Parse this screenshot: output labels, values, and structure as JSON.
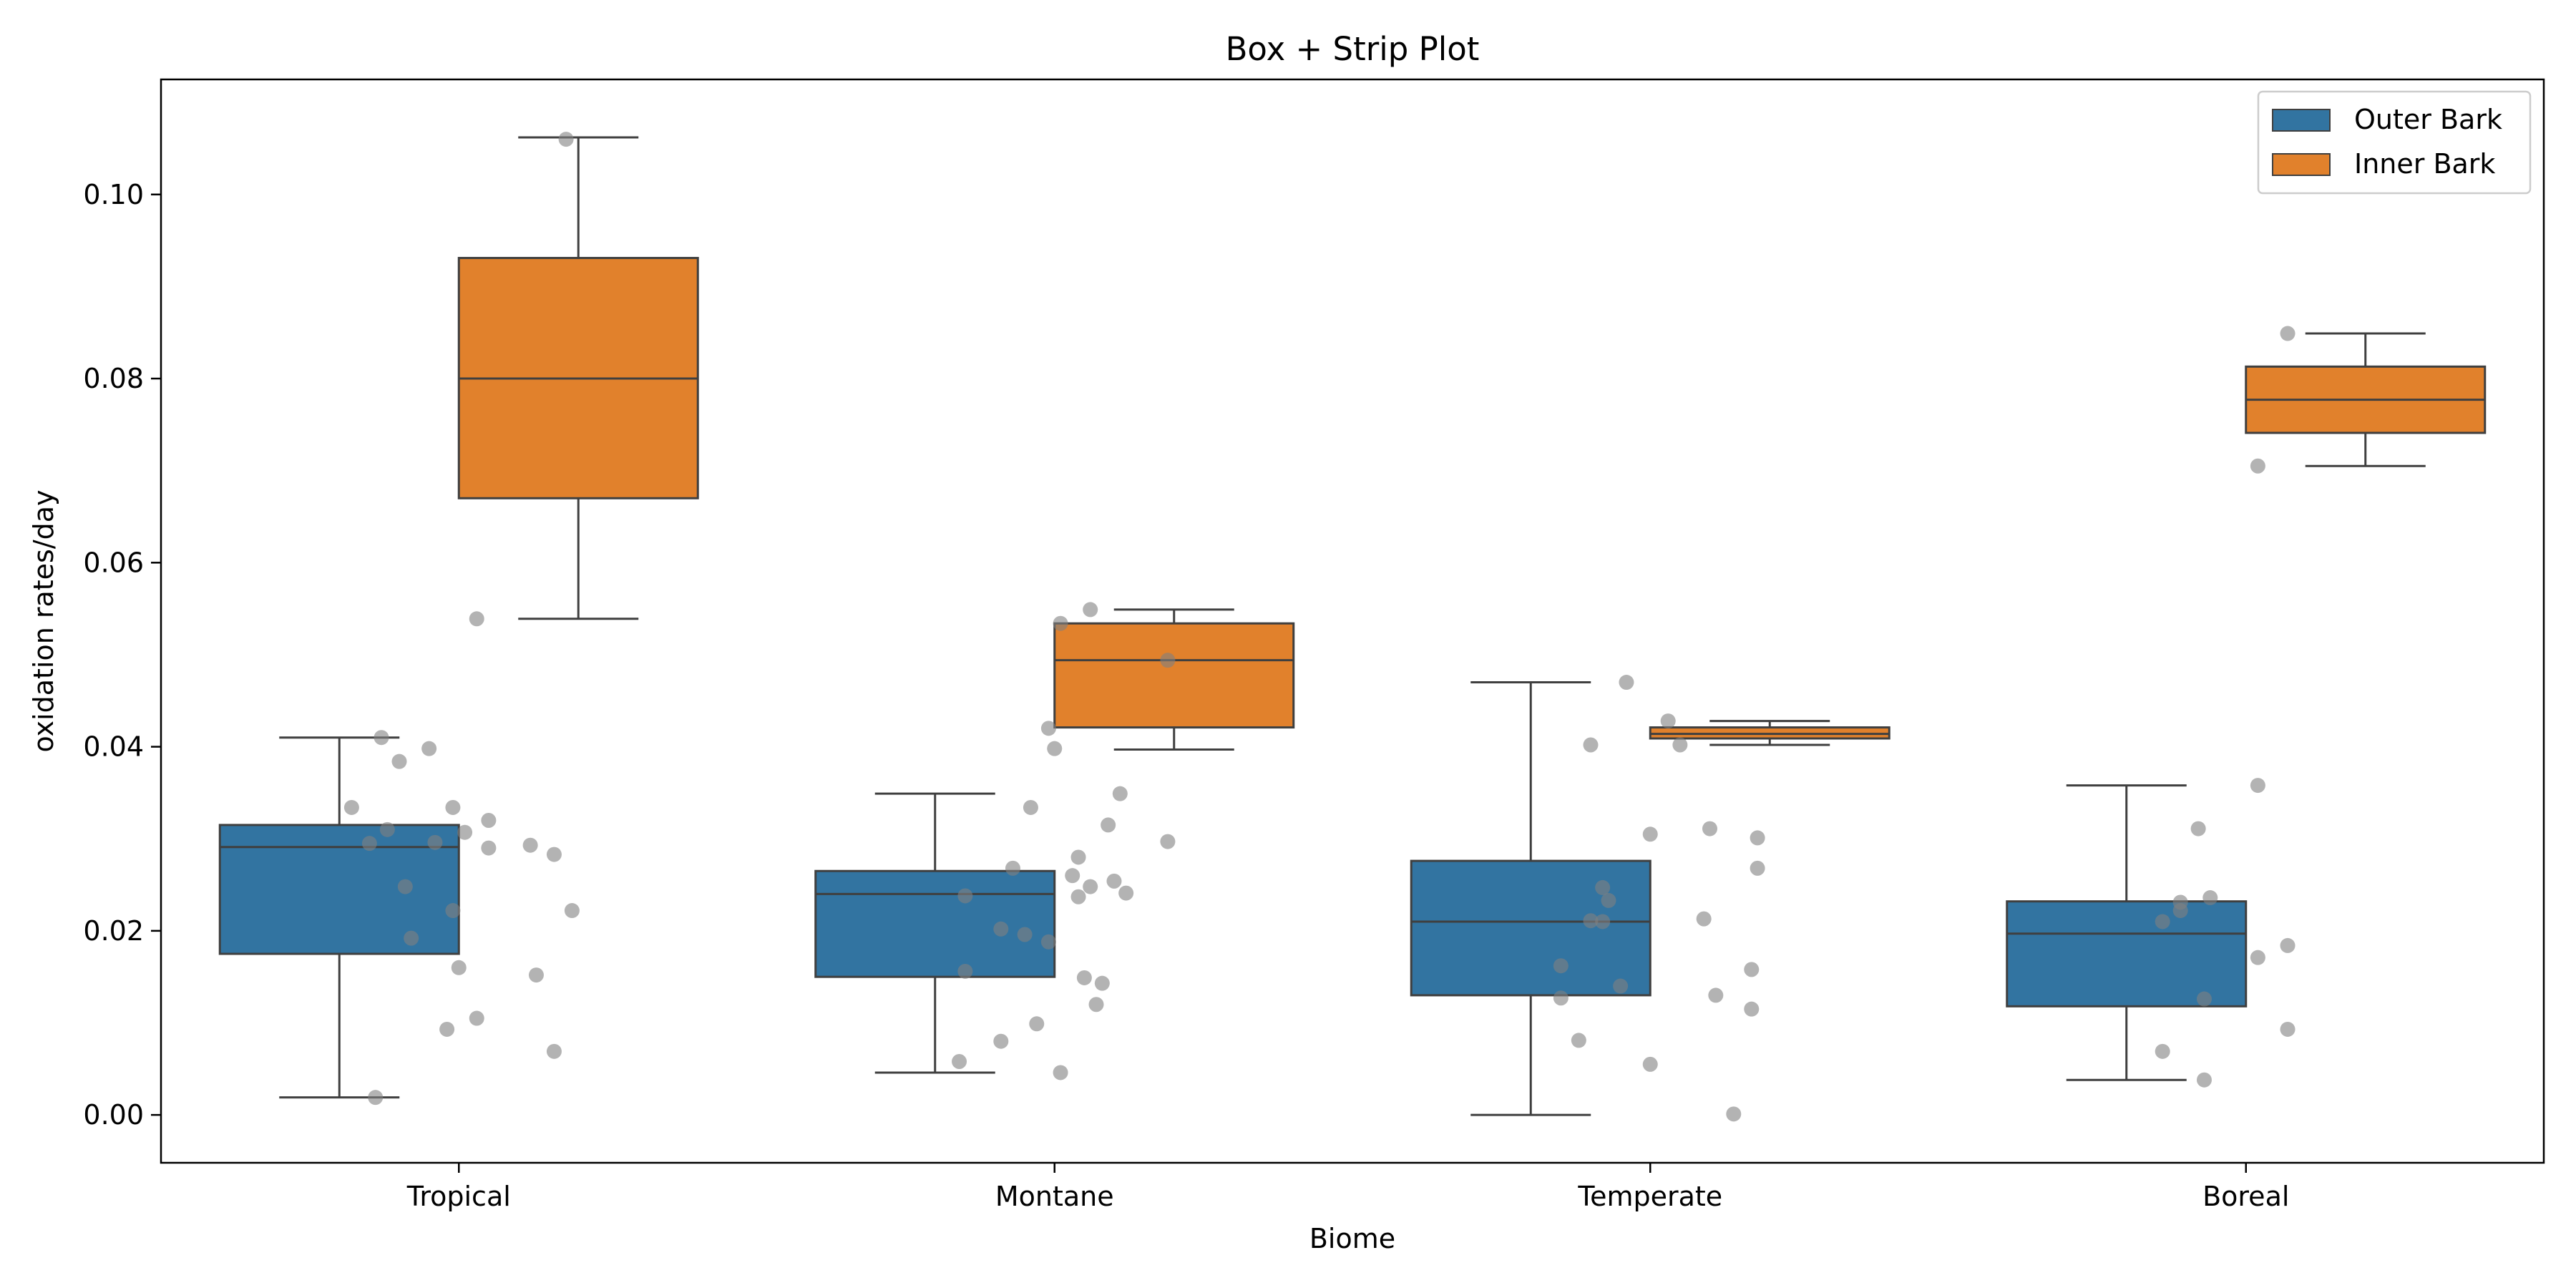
{
  "chart_data": {
    "type": "box",
    "title": "Box + Strip Plot",
    "xlabel": "Biome",
    "ylabel": "oxidation rates/day",
    "categories": [
      "Tropical",
      "Montane",
      "Temperate",
      "Boreal"
    ],
    "ylim": [
      -0.0052,
      0.1125
    ],
    "yticks": [
      0.0,
      0.02,
      0.04,
      0.06,
      0.08,
      0.1
    ],
    "ytick_labels": [
      "0.00",
      "0.02",
      "0.04",
      "0.06",
      "0.08",
      "0.10"
    ],
    "legend": {
      "position": "top-right"
    },
    "strip_color": "#808080",
    "series": [
      {
        "name": "Outer Bark",
        "color": "#3274a1",
        "boxes": [
          {
            "whislo": 0.0019,
            "q1": 0.0175,
            "med": 0.0291,
            "q3": 0.0315,
            "whishi": 0.041
          },
          {
            "whislo": 0.0046,
            "q1": 0.015,
            "med": 0.024,
            "q3": 0.0265,
            "whishi": 0.0349
          },
          {
            "whislo": 0.0,
            "q1": 0.013,
            "med": 0.021,
            "q3": 0.0276,
            "whishi": 0.047
          },
          {
            "whislo": 0.0038,
            "q1": 0.0118,
            "med": 0.0197,
            "q3": 0.0232,
            "whishi": 0.0358
          }
        ]
      },
      {
        "name": "Inner Bark",
        "color": "#e1812c",
        "boxes": [
          {
            "whislo": 0.0539,
            "q1": 0.067,
            "med": 0.08,
            "q3": 0.0931,
            "whishi": 0.1062
          },
          {
            "whislo": 0.0397,
            "q1": 0.0421,
            "med": 0.0494,
            "q3": 0.0534,
            "whishi": 0.0549
          },
          {
            "whislo": 0.0402,
            "q1": 0.0409,
            "med": 0.0414,
            "q3": 0.0421,
            "whishi": 0.0428
          },
          {
            "whislo": 0.0705,
            "q1": 0.0741,
            "med": 0.0777,
            "q3": 0.0813,
            "whishi": 0.0849
          }
        ]
      }
    ],
    "points": [
      {
        "category": "Tropical",
        "offset": -0.18,
        "y": 0.0334
      },
      {
        "category": "Tropical",
        "offset": -0.15,
        "y": 0.0295
      },
      {
        "category": "Tropical",
        "offset": -0.13,
        "y": 0.041
      },
      {
        "category": "Tropical",
        "offset": -0.12,
        "y": 0.031
      },
      {
        "category": "Tropical",
        "offset": -0.1,
        "y": 0.0384
      },
      {
        "category": "Tropical",
        "offset": -0.09,
        "y": 0.0248
      },
      {
        "category": "Tropical",
        "offset": -0.05,
        "y": 0.0398
      },
      {
        "category": "Tropical",
        "offset": -0.04,
        "y": 0.0296
      },
      {
        "category": "Tropical",
        "offset": -0.01,
        "y": 0.0334
      },
      {
        "category": "Tropical",
        "offset": -0.01,
        "y": 0.0222
      },
      {
        "category": "Tropical",
        "offset": 0.0,
        "y": 0.016
      },
      {
        "category": "Tropical",
        "offset": -0.02,
        "y": 0.0093
      },
      {
        "category": "Tropical",
        "offset": 0.03,
        "y": 0.0105
      },
      {
        "category": "Tropical",
        "offset": 0.05,
        "y": 0.032
      },
      {
        "category": "Tropical",
        "offset": 0.05,
        "y": 0.029
      },
      {
        "category": "Tropical",
        "offset": 0.12,
        "y": 0.0293
      },
      {
        "category": "Tropical",
        "offset": 0.13,
        "y": 0.0152
      },
      {
        "category": "Tropical",
        "offset": 0.16,
        "y": 0.0283
      },
      {
        "category": "Tropical",
        "offset": 0.16,
        "y": 0.0069
      },
      {
        "category": "Tropical",
        "offset": 0.19,
        "y": 0.0222
      },
      {
        "category": "Tropical",
        "offset": 0.01,
        "y": 0.0307
      },
      {
        "category": "Tropical",
        "offset": 0.03,
        "y": 0.0539
      },
      {
        "category": "Tropical",
        "offset": 0.18,
        "y": 0.106
      },
      {
        "category": "Tropical",
        "offset": -0.14,
        "y": 0.0019
      },
      {
        "category": "Tropical",
        "offset": -0.08,
        "y": 0.0192
      },
      {
        "category": "Montane",
        "offset": -0.16,
        "y": 0.0058
      },
      {
        "category": "Montane",
        "offset": -0.15,
        "y": 0.0238
      },
      {
        "category": "Montane",
        "offset": -0.15,
        "y": 0.0156
      },
      {
        "category": "Montane",
        "offset": -0.09,
        "y": 0.008
      },
      {
        "category": "Montane",
        "offset": -0.09,
        "y": 0.0202
      },
      {
        "category": "Montane",
        "offset": -0.07,
        "y": 0.0268
      },
      {
        "category": "Montane",
        "offset": -0.05,
        "y": 0.0196
      },
      {
        "category": "Montane",
        "offset": -0.04,
        "y": 0.0334
      },
      {
        "category": "Montane",
        "offset": -0.03,
        "y": 0.0099
      },
      {
        "category": "Montane",
        "offset": -0.01,
        "y": 0.042
      },
      {
        "category": "Montane",
        "offset": -0.01,
        "y": 0.0188
      },
      {
        "category": "Montane",
        "offset": 0.0,
        "y": 0.0398
      },
      {
        "category": "Montane",
        "offset": 0.01,
        "y": 0.0534
      },
      {
        "category": "Montane",
        "offset": 0.01,
        "y": 0.0046
      },
      {
        "category": "Montane",
        "offset": 0.03,
        "y": 0.026
      },
      {
        "category": "Montane",
        "offset": 0.04,
        "y": 0.028
      },
      {
        "category": "Montane",
        "offset": 0.04,
        "y": 0.0237
      },
      {
        "category": "Montane",
        "offset": 0.05,
        "y": 0.0149
      },
      {
        "category": "Montane",
        "offset": 0.06,
        "y": 0.0549
      },
      {
        "category": "Montane",
        "offset": 0.06,
        "y": 0.0248
      },
      {
        "category": "Montane",
        "offset": 0.07,
        "y": 0.012
      },
      {
        "category": "Montane",
        "offset": 0.08,
        "y": 0.0143
      },
      {
        "category": "Montane",
        "offset": 0.09,
        "y": 0.0315
      },
      {
        "category": "Montane",
        "offset": 0.1,
        "y": 0.0254
      },
      {
        "category": "Montane",
        "offset": 0.11,
        "y": 0.0349
      },
      {
        "category": "Montane",
        "offset": 0.12,
        "y": 0.0241
      },
      {
        "category": "Montane",
        "offset": 0.19,
        "y": 0.0494
      },
      {
        "category": "Montane",
        "offset": 0.19,
        "y": 0.0297
      },
      {
        "category": "Temperate",
        "offset": -0.15,
        "y": 0.0127
      },
      {
        "category": "Temperate",
        "offset": -0.15,
        "y": 0.0162
      },
      {
        "category": "Temperate",
        "offset": -0.12,
        "y": 0.0081
      },
      {
        "category": "Temperate",
        "offset": -0.1,
        "y": 0.0402
      },
      {
        "category": "Temperate",
        "offset": -0.1,
        "y": 0.0211
      },
      {
        "category": "Temperate",
        "offset": -0.08,
        "y": 0.0247
      },
      {
        "category": "Temperate",
        "offset": -0.08,
        "y": 0.021
      },
      {
        "category": "Temperate",
        "offset": -0.07,
        "y": 0.0233
      },
      {
        "category": "Temperate",
        "offset": -0.05,
        "y": 0.014
      },
      {
        "category": "Temperate",
        "offset": -0.04,
        "y": 0.047
      },
      {
        "category": "Temperate",
        "offset": 0.0,
        "y": 0.0055
      },
      {
        "category": "Temperate",
        "offset": 0.0,
        "y": 0.0305
      },
      {
        "category": "Temperate",
        "offset": 0.03,
        "y": 0.0428
      },
      {
        "category": "Temperate",
        "offset": 0.05,
        "y": 0.0402
      },
      {
        "category": "Temperate",
        "offset": 0.09,
        "y": 0.0213
      },
      {
        "category": "Temperate",
        "offset": 0.1,
        "y": 0.0311
      },
      {
        "category": "Temperate",
        "offset": 0.11,
        "y": 0.013
      },
      {
        "category": "Temperate",
        "offset": 0.14,
        "y": 0.0001
      },
      {
        "category": "Temperate",
        "offset": 0.17,
        "y": 0.0158
      },
      {
        "category": "Temperate",
        "offset": 0.17,
        "y": 0.0115
      },
      {
        "category": "Temperate",
        "offset": 0.18,
        "y": 0.0301
      },
      {
        "category": "Temperate",
        "offset": 0.18,
        "y": 0.0268
      },
      {
        "category": "Boreal",
        "offset": -0.14,
        "y": 0.0069
      },
      {
        "category": "Boreal",
        "offset": -0.14,
        "y": 0.021
      },
      {
        "category": "Boreal",
        "offset": -0.11,
        "y": 0.0222
      },
      {
        "category": "Boreal",
        "offset": -0.11,
        "y": 0.0231
      },
      {
        "category": "Boreal",
        "offset": -0.08,
        "y": 0.0311
      },
      {
        "category": "Boreal",
        "offset": -0.07,
        "y": 0.0038
      },
      {
        "category": "Boreal",
        "offset": -0.07,
        "y": 0.0126
      },
      {
        "category": "Boreal",
        "offset": -0.06,
        "y": 0.0236
      },
      {
        "category": "Boreal",
        "offset": 0.02,
        "y": 0.0358
      },
      {
        "category": "Boreal",
        "offset": 0.02,
        "y": 0.0171
      },
      {
        "category": "Boreal",
        "offset": 0.02,
        "y": 0.0705
      },
      {
        "category": "Boreal",
        "offset": 0.07,
        "y": 0.0184
      },
      {
        "category": "Boreal",
        "offset": 0.07,
        "y": 0.0093
      },
      {
        "category": "Boreal",
        "offset": 0.07,
        "y": 0.0849
      }
    ]
  }
}
